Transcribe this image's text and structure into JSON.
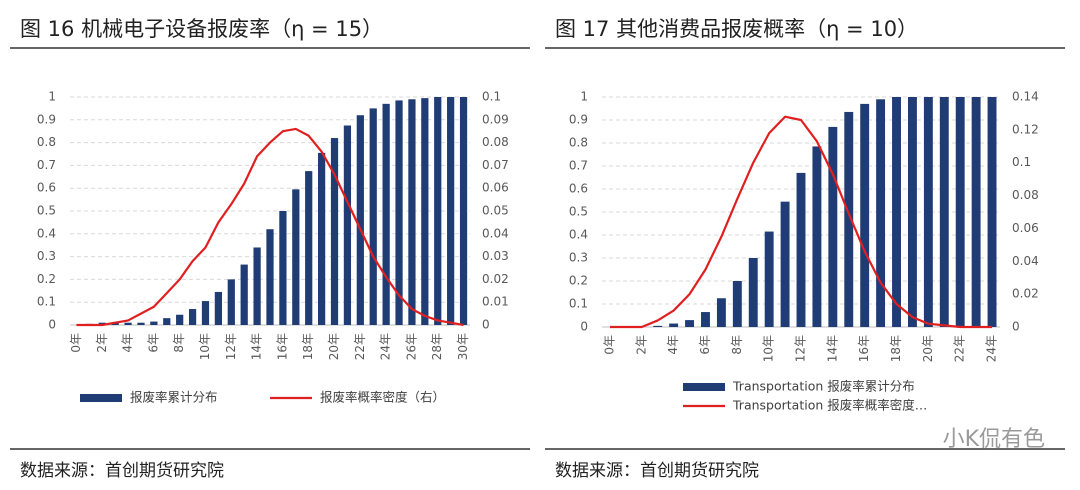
{
  "chart_data": [
    {
      "type": "combo",
      "title": "图 16 机械电子设备报废率（η = 15）",
      "source": "数据来源：首创期货研究院",
      "categories": [
        "0年",
        null,
        "2年",
        null,
        "4年",
        null,
        "6年",
        null,
        "8年",
        null,
        "10年",
        null,
        "12年",
        null,
        "14年",
        null,
        "16年",
        null,
        "18年",
        null,
        "20年",
        null,
        "22年",
        null,
        "24年",
        null,
        "26年",
        null,
        "28年",
        null,
        "30年"
      ],
      "series": [
        {
          "name": "报废率累计分布",
          "type": "bar",
          "color": "#1f3c74",
          "values": [
            0,
            0.005,
            0.01,
            0.01,
            0.01,
            0.01,
            0.015,
            0.03,
            0.045,
            0.07,
            0.105,
            0.145,
            0.2,
            0.265,
            0.34,
            0.42,
            0.5,
            0.595,
            0.675,
            0.755,
            0.82,
            0.875,
            0.92,
            0.95,
            0.97,
            0.985,
            0.99,
            0.995,
            1,
            1,
            1
          ]
        },
        {
          "name": "报废率概率密度（右）",
          "type": "line",
          "axis": "y2",
          "color": "#e02020",
          "values": [
            0,
            0,
            0,
            0.001,
            0.002,
            0.005,
            0.008,
            0.014,
            0.02,
            0.028,
            0.034,
            0.045,
            0.053,
            0.062,
            0.074,
            0.08,
            0.085,
            0.086,
            0.083,
            0.076,
            0.066,
            0.054,
            0.042,
            0.03,
            0.021,
            0.013,
            0.007,
            0.004,
            0.002,
            0.001,
            0
          ]
        }
      ],
      "ylim": [
        0,
        1
      ],
      "yticks": [
        0,
        0.1,
        0.2,
        0.3,
        0.4,
        0.5,
        0.6,
        0.7,
        0.8,
        0.9,
        1
      ],
      "y2lim": [
        0,
        0.1
      ],
      "y2ticks": [
        0,
        0.01,
        0.02,
        0.03,
        0.04,
        0.05,
        0.06,
        0.07,
        0.08,
        0.09,
        0.1
      ],
      "grid": true,
      "legend": "bottom"
    },
    {
      "type": "combo",
      "title": "图 17 其他消费品报废概率（η = 10）",
      "source": "数据来源：首创期货研究院",
      "categories": [
        "0年",
        null,
        "2年",
        null,
        "4年",
        null,
        "6年",
        null,
        "8年",
        null,
        "10年",
        null,
        "12年",
        null,
        "14年",
        null,
        "16年",
        null,
        "18年",
        null,
        "20年",
        null,
        "22年",
        null,
        "24年"
      ],
      "series": [
        {
          "name": "Transportation 报废率累计分布",
          "type": "bar",
          "color": "#1f3c74",
          "values": [
            0,
            0,
            0,
            0.005,
            0.015,
            0.03,
            0.065,
            0.125,
            0.2,
            0.3,
            0.415,
            0.545,
            0.67,
            0.785,
            0.87,
            0.935,
            0.97,
            0.99,
            1,
            1,
            1,
            1,
            1,
            1,
            1
          ]
        },
        {
          "name": "Transportation 报废率概率密度…",
          "type": "line",
          "axis": "y2",
          "color": "#e02020",
          "values": [
            0,
            0,
            0,
            0.004,
            0.01,
            0.02,
            0.035,
            0.055,
            0.078,
            0.1,
            0.118,
            0.128,
            0.126,
            0.113,
            0.093,
            0.069,
            0.046,
            0.027,
            0.014,
            0.006,
            0.002,
            0.001,
            0,
            0,
            0
          ]
        }
      ],
      "ylim": [
        0,
        1
      ],
      "yticks": [
        0,
        0.1,
        0.2,
        0.3,
        0.4,
        0.5,
        0.6,
        0.7,
        0.8,
        0.9,
        1
      ],
      "y2lim": [
        0,
        0.14
      ],
      "y2ticks": [
        0,
        0.02,
        0.04,
        0.06,
        0.08,
        0.1,
        0.12,
        0.14
      ],
      "grid": true,
      "legend": "bottom"
    }
  ],
  "watermark": "小K侃有色"
}
